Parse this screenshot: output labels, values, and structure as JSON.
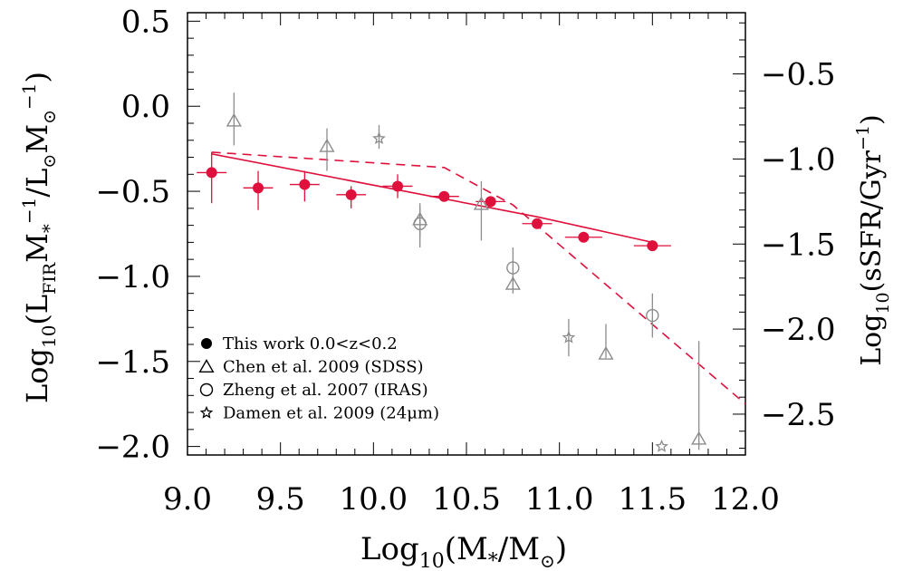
{
  "chart_data": {
    "type": "scatter",
    "xlabel": {
      "base": "Log",
      "sub": "10",
      "text": "(M",
      "sub2": "*",
      "text2": "/M",
      "sub3": "⊙",
      "text3": ")"
    },
    "ylabel_left": {
      "base": "Log",
      "sub": "10",
      "text": "(L",
      "sub2": "FIR",
      "text2": "M",
      "sub3": "*",
      "sup": "−1",
      "text3": "/L",
      "sub4": "⊙",
      "text4": "M",
      "sub5": "⊙",
      "sup2": "−1",
      "text5": ")"
    },
    "ylabel_right": {
      "base": "Log",
      "sub": "10",
      "text": "(sSFR/Gyr",
      "sup": "−1",
      "text2": ")"
    },
    "xlim": [
      9.0,
      12.0
    ],
    "ylim": [
      -2.05,
      0.55
    ],
    "ylim_right": [
      -2.74,
      -0.14
    ],
    "x_ticks": [
      "9.0",
      "9.5",
      "10.0",
      "10.5",
      "11.0",
      "11.5",
      "12.0"
    ],
    "x_tick_values": [
      9.0,
      9.5,
      10.0,
      10.5,
      11.0,
      11.5,
      12.0
    ],
    "y_ticks": [
      "0.5",
      "0.0",
      "−0.5",
      "−1.0",
      "−1.5",
      "−2.0"
    ],
    "y_tick_values": [
      0.5,
      0.0,
      -0.5,
      -1.0,
      -1.5,
      -2.0
    ],
    "y_ticks_right": [
      "−0.5",
      "−1.0",
      "−1.5",
      "−2.0",
      "−2.5"
    ],
    "y_tick_values_right": [
      -0.5,
      -1.0,
      -1.5,
      -2.0,
      -2.5
    ],
    "colors": {
      "this_work": "#e0103c",
      "literature": "#8c8c8c"
    },
    "series": [
      {
        "name": "This work 0.0<z<0.2",
        "marker": "filled-circle",
        "points": [
          {
            "x": 9.13,
            "y": -0.39,
            "xerr": 0.08,
            "yerr_up": 0.12,
            "yerr_lo": 0.18
          },
          {
            "x": 9.38,
            "y": -0.48,
            "xerr": 0.08,
            "yerr_up": 0.1,
            "yerr_lo": 0.13
          },
          {
            "x": 9.63,
            "y": -0.46,
            "xerr": 0.08,
            "yerr_up": 0.08,
            "yerr_lo": 0.1
          },
          {
            "x": 9.88,
            "y": -0.52,
            "xerr": 0.08,
            "yerr_up": 0.05,
            "yerr_lo": 0.08
          },
          {
            "x": 10.13,
            "y": -0.47,
            "xerr": 0.08,
            "yerr_up": 0.07,
            "yerr_lo": 0.07
          },
          {
            "x": 10.38,
            "y": -0.53,
            "xerr": 0.08,
            "yerr_up": 0.02,
            "yerr_lo": 0.02
          },
          {
            "x": 10.63,
            "y": -0.56,
            "xerr": 0.08,
            "yerr_up": 0.02,
            "yerr_lo": 0.02
          },
          {
            "x": 10.88,
            "y": -0.69,
            "xerr": 0.08,
            "yerr_up": 0.02,
            "yerr_lo": 0.02
          },
          {
            "x": 11.13,
            "y": -0.77,
            "xerr": 0.1,
            "yerr_up": 0.02,
            "yerr_lo": 0.02
          },
          {
            "x": 11.5,
            "y": -0.82,
            "xerr": 0.1,
            "yerr_up": 0.02,
            "yerr_lo": 0.03
          }
        ]
      },
      {
        "name": "Chen et al. 2009 (SDSS)",
        "marker": "open-triangle",
        "points": [
          {
            "x": 9.25,
            "y": -0.09,
            "yerr_up": 0.17,
            "yerr_lo": 0.14
          },
          {
            "x": 9.75,
            "y": -0.24,
            "yerr_up": 0.11,
            "yerr_lo": 0.14
          },
          {
            "x": 10.25,
            "y": -0.67,
            "yerr_up": 0.1,
            "yerr_lo": 0.1
          },
          {
            "x": 10.58,
            "y": -0.58,
            "yerr_up": 0.14,
            "yerr_lo": 0.21
          },
          {
            "x": 10.75,
            "y": -1.05,
            "yerr_up": 0.05,
            "yerr_lo": 0.05
          },
          {
            "x": 11.25,
            "y": -1.46,
            "yerr_up": 0.18,
            "yerr_lo": 0.02
          },
          {
            "x": 11.75,
            "y": -1.96,
            "yerr_up": 0.58,
            "yerr_lo": 0.06
          }
        ]
      },
      {
        "name": "Zheng et al. 2007 (IRAS)",
        "marker": "open-circle",
        "points": [
          {
            "x": 10.25,
            "y": -0.69,
            "yerr_up": 0.1,
            "yerr_lo": 0.14
          },
          {
            "x": 10.75,
            "y": -0.95,
            "yerr_up": 0.12,
            "yerr_lo": 0.12
          },
          {
            "x": 11.5,
            "y": -1.23,
            "yerr_up": 0.13,
            "yerr_lo": 0.13
          }
        ]
      },
      {
        "name": "Damen et al. 2009 (24μm)",
        "marker": "open-star",
        "points": [
          {
            "x": 10.03,
            "y": -0.19,
            "yerr_up": 0.08,
            "yerr_lo": 0.06
          },
          {
            "x": 11.05,
            "y": -1.36,
            "yerr_up": 0.11,
            "yerr_lo": 0.11
          },
          {
            "x": 11.55,
            "y": -2.0,
            "yerr_up": 0.0,
            "yerr_lo": 0.0
          }
        ]
      }
    ],
    "lines": [
      {
        "style": "solid",
        "points": [
          [
            9.13,
            -0.28
          ],
          [
            10.88,
            -0.65
          ],
          [
            11.5,
            -0.8
          ]
        ]
      },
      {
        "style": "dashed",
        "points": [
          [
            9.13,
            -0.27
          ],
          [
            10.38,
            -0.36
          ],
          [
            10.75,
            -0.58
          ],
          [
            12.0,
            -1.75
          ]
        ]
      }
    ],
    "legend": {
      "position": "bottom-left"
    }
  }
}
